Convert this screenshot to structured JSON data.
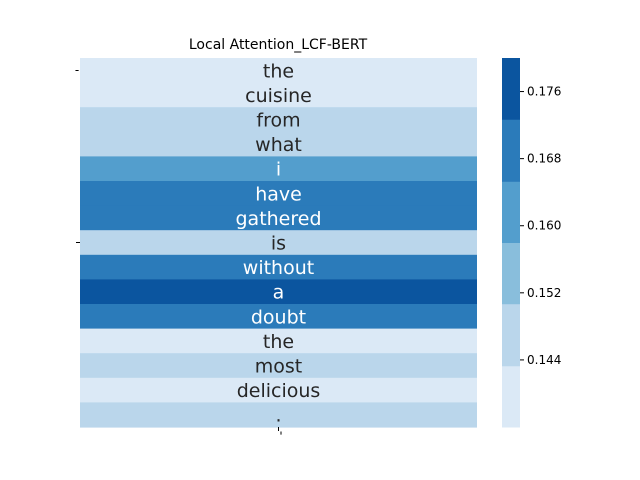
{
  "chart_data": {
    "type": "heatmap",
    "title": "Local Attention_LCF-BERT",
    "xlabel": "",
    "ylabel": "",
    "y_tick_label": "-",
    "x_tick_label": "-",
    "tokens": [
      "the",
      "cuisine",
      "from",
      "what",
      "i",
      "have",
      "gathered",
      "is",
      "without",
      "a",
      "doubt",
      "the",
      "most",
      "delicious",
      "."
    ],
    "values": [
      0.14,
      0.14,
      0.146,
      0.146,
      0.158,
      0.166,
      0.166,
      0.146,
      0.166,
      0.176,
      0.166,
      0.14,
      0.146,
      0.14,
      0.146
    ],
    "colorbar": {
      "vmin": 0.136,
      "vmax": 0.18,
      "ticks": [
        0.144,
        0.152,
        0.16,
        0.168,
        0.176
      ],
      "tick_labels": [
        "0.144",
        "0.152",
        "0.160",
        "0.168",
        "0.176"
      ],
      "bins": [
        {
          "from": 0.136,
          "to": 0.1433,
          "color": "#dbe9f6"
        },
        {
          "from": 0.1433,
          "to": 0.1507,
          "color": "#bad6eb"
        },
        {
          "from": 0.1507,
          "to": 0.158,
          "color": "#89bedc"
        },
        {
          "from": 0.158,
          "to": 0.1653,
          "color": "#539ecd"
        },
        {
          "from": 0.1653,
          "to": 0.1727,
          "color": "#2b7bba"
        },
        {
          "from": 0.1727,
          "to": 0.18,
          "color": "#0b559f"
        }
      ]
    },
    "grid": false,
    "legend": "colorbar-right"
  }
}
